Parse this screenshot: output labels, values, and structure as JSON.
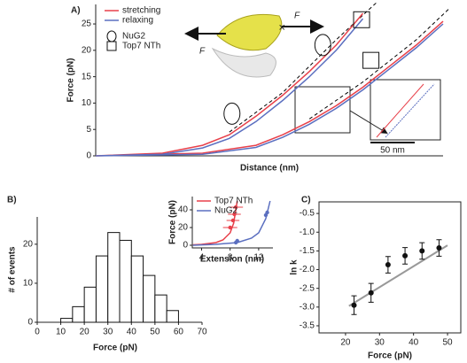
{
  "chart_data": [
    {
      "type": "line",
      "panel_label": "A)",
      "xlabel": "Distance (nm)",
      "ylabel": "Force (pN)",
      "xlim": [
        0,
        260
      ],
      "ylim": [
        0,
        28.7
      ],
      "yticks": [
        0,
        5,
        10,
        15,
        20,
        25
      ],
      "series": [
        {
          "name": "stretching",
          "color": "#e8404a",
          "x": [
            0,
            50,
            80,
            100,
            120,
            140,
            160,
            180,
            200,
            null,
            0,
            80,
            120,
            140,
            160,
            180,
            200,
            220,
            240,
            260
          ],
          "values": [
            0,
            0.5,
            2,
            4,
            7.5,
            11.5,
            16,
            21,
            27,
            null,
            0,
            0.5,
            2,
            4,
            6.5,
            9.5,
            13,
            17,
            21,
            25.5
          ]
        },
        {
          "name": "relaxing",
          "color": "#5b6fc0",
          "x": [
            0,
            50,
            80,
            100,
            120,
            140,
            160,
            180,
            200,
            null,
            0,
            80,
            120,
            140,
            160,
            180,
            200,
            220,
            240,
            260
          ],
          "values": [
            0,
            0.3,
            1.5,
            3.3,
            6.5,
            10.5,
            15,
            20,
            26,
            null,
            0,
            0.3,
            1.6,
            3.5,
            6,
            9,
            12.5,
            16.5,
            20.5,
            25
          ]
        }
      ],
      "fits": {
        "color": "#000000",
        "x": [
          100,
          140,
          180,
          210,
          null,
          160,
          200,
          240,
          265
        ],
        "values": [
          4.5,
          12,
          22,
          29,
          null,
          7,
          14,
          22,
          28
        ]
      },
      "markers": [
        {
          "name": "NuG2",
          "shape": "circle",
          "x": [
            102,
            170
          ],
          "values": [
            8,
            21
          ]
        },
        {
          "name": "Top7 NTh",
          "shape": "square",
          "x": [
            199,
            206
          ],
          "values": [
            25.8,
            18.1
          ]
        }
      ],
      "annotations": [
        "F",
        "F",
        "50 nm"
      ]
    },
    {
      "type": "histogram",
      "panel_label": "B)",
      "xlabel": "Force (pN)",
      "ylabel": "# of events",
      "bins": [
        10,
        15,
        20,
        25,
        30,
        35,
        40,
        45,
        50,
        55,
        60
      ],
      "counts": [
        1,
        4,
        9,
        17,
        23,
        21,
        17,
        12,
        7,
        3
      ],
      "xlim": [
        0,
        70
      ],
      "xticks": [
        0,
        10,
        20,
        30,
        40,
        50,
        60,
        70
      ],
      "ylim": [
        0,
        27
      ],
      "yticks": [
        0,
        10,
        20
      ]
    },
    {
      "type": "line",
      "xlabel": "Extension (nm)",
      "ylabel": "Force (pN)",
      "xlim": [
        2.7,
        14
      ],
      "xticks": [
        4,
        8,
        12
      ],
      "ylim": [
        -3,
        55
      ],
      "yticks": [
        0,
        20,
        40
      ],
      "series": [
        {
          "name": "Top7 NTh",
          "color": "#e8404a",
          "x": [
            2.8,
            4,
            6,
            7,
            8,
            8.5,
            9
          ],
          "values": [
            0.5,
            1,
            3,
            6,
            14,
            25,
            50
          ],
          "points": {
            "x": [
              8,
              8.4,
              8.6,
              8.8
            ],
            "values": [
              20,
              28,
              35,
              43
            ],
            "xerr": [
              1,
              0.9,
              0.9,
              1
            ]
          }
        },
        {
          "name": "NuG2",
          "color": "#5b6fc0",
          "x": [
            2.8,
            6,
            9,
            11,
            12,
            13,
            13.6
          ],
          "values": [
            0,
            1,
            3,
            8,
            14,
            30,
            50
          ],
          "points": {
            "x": [
              8.8,
              9,
              13,
              13.2
            ],
            "values": [
              3,
              5,
              34,
              37
            ]
          }
        }
      ]
    },
    {
      "type": "scatter",
      "panel_label": "C)",
      "xlabel": "Force (pN)",
      "ylabel": "ln k",
      "xlim": [
        12.2,
        53.9
      ],
      "xticks": [
        20,
        30,
        40,
        50
      ],
      "ylim": [
        -3.69,
        -0.19
      ],
      "yticks": [
        -0.5,
        {
          "value": -1,
          "label": "-1.0"
        },
        -1.5,
        {
          "value": -2,
          "label": "-2.0"
        },
        -2.5,
        {
          "value": -3,
          "label": "-3.0"
        },
        -3.5
      ],
      "x": [
        22.5,
        27.5,
        32.5,
        37.5,
        42.5,
        47.5
      ],
      "values": [
        -2.95,
        -2.62,
        -1.87,
        -1.63,
        -1.5,
        -1.42
      ],
      "yerr": [
        0.25,
        0.25,
        0.22,
        0.22,
        0.22,
        0.22
      ],
      "color": "#111111",
      "fit": {
        "color": "#999999",
        "x": [
          21,
          50
        ],
        "values": [
          -2.97,
          -1.35
        ]
      }
    }
  ]
}
